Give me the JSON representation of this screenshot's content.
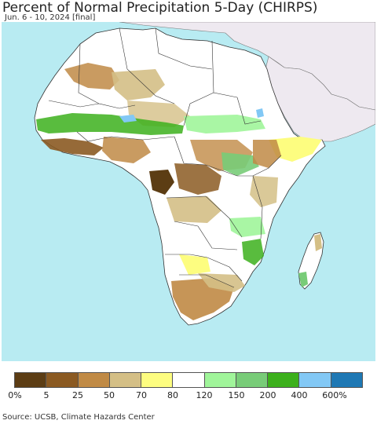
{
  "title": "Percent of Normal Precipitation 5-Day (CHIRPS)",
  "subtitle": "Jun. 6 - 10, 2024 [final]",
  "source": "Source: UCSB, Climate Hazards Center",
  "colors": {
    "ocean": "#b8ebf2",
    "non_africa_land": "#eee9f0",
    "no_data_land": "#ffffff",
    "border": "#333333"
  },
  "legend": {
    "classes": [
      {
        "color": "#5c3d14"
      },
      {
        "color": "#8b5a22"
      },
      {
        "color": "#c08a45"
      },
      {
        "color": "#d4bf86"
      },
      {
        "color": "#fdfd80"
      },
      {
        "color": "#ffffff"
      },
      {
        "color": "#a0f59a"
      },
      {
        "color": "#78cc78"
      },
      {
        "color": "#3cb01c"
      },
      {
        "color": "#82c8f5"
      },
      {
        "color": "#1e78b4"
      }
    ],
    "ticks": [
      "0%",
      "5",
      "25",
      "50",
      "70",
      "80",
      "120",
      "150",
      "200",
      "400",
      "600%"
    ]
  }
}
